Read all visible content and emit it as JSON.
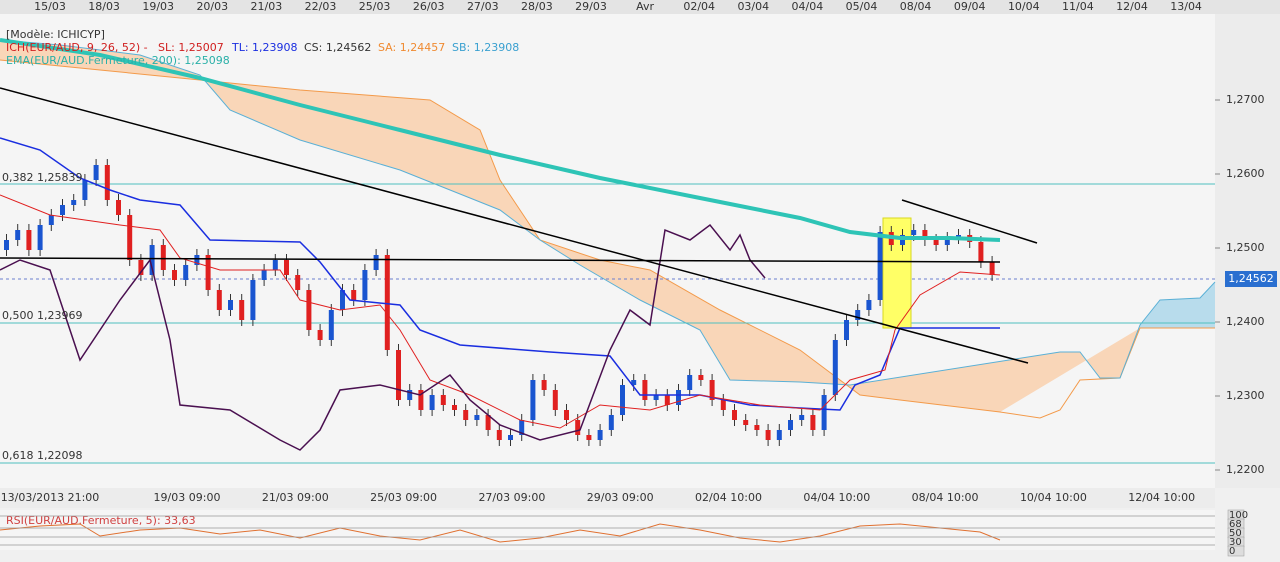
{
  "top_axis": {
    "dates": [
      "15/03",
      "18/03",
      "19/03",
      "20/03",
      "21/03",
      "22/03",
      "25/03",
      "26/03",
      "27/03",
      "28/03",
      "29/03",
      "Avr",
      "02/04",
      "03/04",
      "04/04",
      "05/04",
      "08/04",
      "09/04",
      "10/04",
      "11/04",
      "12/04",
      "13/04"
    ]
  },
  "legend": {
    "model": "[Modèle: ICHICYP]",
    "ich": "ICH(EUR/AUD, 9, 26, 52) -",
    "sl": "SL: 1,25007",
    "tl": "TL: 1,23908",
    "cs": "CS: 1,24562",
    "sa": "SA: 1,24457",
    "sb": "SB: 1,23908",
    "ema": "EMA(EUR/AUD.Fermeture, 200): 1,25098"
  },
  "fibonacci": [
    "0,382 1,25839",
    "0,500 1,23969",
    "0,618 1,22098"
  ],
  "price_axis": {
    "labels": [
      "1,2700",
      "1,2600",
      "1,2500",
      "1,2400",
      "1,2300",
      "1,2200"
    ],
    "current": "1,24562"
  },
  "bottom_axis": {
    "dates": [
      "13/03/2013 21:00",
      "19/03 09:00",
      "21/03 09:00",
      "25/03 09:00",
      "27/03 09:00",
      "29/03 09:00",
      "02/04 10:00",
      "04/04 10:00",
      "08/04 10:00",
      "10/04 10:00",
      "12/04 10:00"
    ]
  },
  "rsi": {
    "label": "RSI(EUR/AUD.Fermeture, 5): 33,63",
    "axis": [
      "100",
      "68",
      "50",
      "30",
      "0"
    ]
  }
}
